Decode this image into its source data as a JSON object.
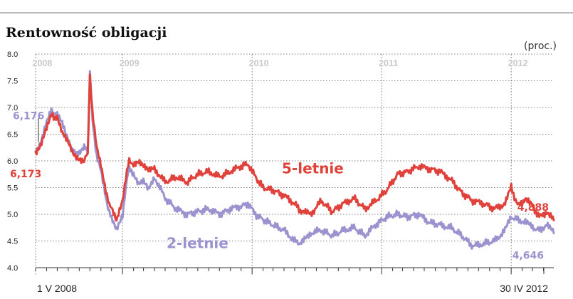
{
  "chart_data": {
    "type": "line",
    "title": "Rentowność obligacji",
    "unit": "(proc.)",
    "ylim": [
      4.0,
      8.0
    ],
    "yticks": [
      "4.0",
      "4.5",
      "5.0",
      "5.5",
      "6.0",
      "6.5",
      "7.0",
      "7.5",
      "8.0"
    ],
    "xlim": [
      "2008-05-01",
      "2012-04-30"
    ],
    "x_start_label": "1 V 2008",
    "x_end_label": "30 IV 2012",
    "year_labels": [
      {
        "text": "2008",
        "date": "2008-05-20"
      },
      {
        "text": "2009",
        "date": "2009-01-20"
      },
      {
        "text": "2010",
        "date": "2010-01-20"
      },
      {
        "text": "2011",
        "date": "2011-01-20"
      },
      {
        "text": "2012",
        "date": "2012-01-20"
      }
    ],
    "grid": true,
    "colors": {
      "five_year": "#e0413a",
      "two_year": "#9b93cf",
      "grid": "#555555"
    },
    "series": [
      {
        "name": "5-letnie",
        "color": "#e0413a",
        "start_value": "6,173",
        "end_value": "4,888",
        "points": [
          [
            "2008-05-01",
            6.17
          ],
          [
            "2008-05-15",
            6.3
          ],
          [
            "2008-06-01",
            6.6
          ],
          [
            "2008-06-15",
            6.85
          ],
          [
            "2008-07-01",
            6.8
          ],
          [
            "2008-07-15",
            6.5
          ],
          [
            "2008-08-01",
            6.35
          ],
          [
            "2008-08-15",
            6.15
          ],
          [
            "2008-09-01",
            6.05
          ],
          [
            "2008-09-15",
            6.0
          ],
          [
            "2008-09-25",
            6.15
          ],
          [
            "2008-10-01",
            7.6
          ],
          [
            "2008-10-08",
            6.9
          ],
          [
            "2008-10-20",
            6.3
          ],
          [
            "2008-11-01",
            5.9
          ],
          [
            "2008-11-15",
            5.4
          ],
          [
            "2008-12-01",
            5.1
          ],
          [
            "2008-12-15",
            4.85
          ],
          [
            "2009-01-01",
            5.25
          ],
          [
            "2009-01-10",
            5.7
          ],
          [
            "2009-01-20",
            6.0
          ],
          [
            "2009-02-01",
            5.95
          ],
          [
            "2009-02-15",
            6.0
          ],
          [
            "2009-03-01",
            5.9
          ],
          [
            "2009-03-15",
            5.8
          ],
          [
            "2009-04-01",
            5.85
          ],
          [
            "2009-05-01",
            5.6
          ],
          [
            "2009-06-01",
            5.7
          ],
          [
            "2009-07-01",
            5.6
          ],
          [
            "2009-08-01",
            5.75
          ],
          [
            "2009-09-01",
            5.8
          ],
          [
            "2009-10-01",
            5.7
          ],
          [
            "2009-11-01",
            5.8
          ],
          [
            "2009-12-01",
            5.9
          ],
          [
            "2009-12-20",
            5.95
          ],
          [
            "2010-01-10",
            5.7
          ],
          [
            "2010-02-01",
            5.5
          ],
          [
            "2010-03-01",
            5.45
          ],
          [
            "2010-04-01",
            5.35
          ],
          [
            "2010-05-01",
            5.2
          ],
          [
            "2010-05-20",
            5.05
          ],
          [
            "2010-06-15",
            5.0
          ],
          [
            "2010-07-15",
            5.25
          ],
          [
            "2010-08-15",
            5.05
          ],
          [
            "2010-09-15",
            5.2
          ],
          [
            "2010-10-15",
            5.3
          ],
          [
            "2010-11-15",
            5.1
          ],
          [
            "2010-12-15",
            5.25
          ],
          [
            "2011-01-15",
            5.45
          ],
          [
            "2011-02-15",
            5.75
          ],
          [
            "2011-03-15",
            5.8
          ],
          [
            "2011-04-15",
            5.9
          ],
          [
            "2011-05-15",
            5.85
          ],
          [
            "2011-06-15",
            5.8
          ],
          [
            "2011-07-15",
            5.65
          ],
          [
            "2011-08-15",
            5.4
          ],
          [
            "2011-09-15",
            5.25
          ],
          [
            "2011-10-15",
            5.2
          ],
          [
            "2011-11-15",
            5.1
          ],
          [
            "2011-12-15",
            5.2
          ],
          [
            "2012-01-01",
            5.5
          ],
          [
            "2012-01-20",
            5.15
          ],
          [
            "2012-02-10",
            5.3
          ],
          [
            "2012-03-01",
            5.15
          ],
          [
            "2012-03-20",
            4.95
          ],
          [
            "2012-04-10",
            5.05
          ],
          [
            "2012-04-30",
            4.888
          ]
        ]
      },
      {
        "name": "2-letnie",
        "color": "#9b93cf",
        "start_value": "6,176",
        "end_value": "4,646",
        "points": [
          [
            "2008-05-01",
            6.18
          ],
          [
            "2008-05-15",
            6.3
          ],
          [
            "2008-06-01",
            6.7
          ],
          [
            "2008-06-15",
            6.95
          ],
          [
            "2008-07-01",
            6.85
          ],
          [
            "2008-07-15",
            6.7
          ],
          [
            "2008-08-01",
            6.4
          ],
          [
            "2008-08-15",
            6.2
          ],
          [
            "2008-09-01",
            6.15
          ],
          [
            "2008-09-15",
            6.25
          ],
          [
            "2008-09-25",
            6.2
          ],
          [
            "2008-10-01",
            7.7
          ],
          [
            "2008-10-08",
            6.8
          ],
          [
            "2008-10-20",
            6.1
          ],
          [
            "2008-11-01",
            5.8
          ],
          [
            "2008-11-15",
            5.3
          ],
          [
            "2008-12-01",
            4.9
          ],
          [
            "2008-12-15",
            4.7
          ],
          [
            "2009-01-01",
            5.0
          ],
          [
            "2009-01-10",
            5.5
          ],
          [
            "2009-01-20",
            5.9
          ],
          [
            "2009-02-01",
            5.75
          ],
          [
            "2009-02-15",
            5.55
          ],
          [
            "2009-03-01",
            5.6
          ],
          [
            "2009-03-15",
            5.45
          ],
          [
            "2009-04-01",
            5.7
          ],
          [
            "2009-05-01",
            5.3
          ],
          [
            "2009-06-01",
            5.1
          ],
          [
            "2009-07-01",
            5.0
          ],
          [
            "2009-08-01",
            5.05
          ],
          [
            "2009-09-01",
            5.1
          ],
          [
            "2009-10-01",
            5.0
          ],
          [
            "2009-11-01",
            5.1
          ],
          [
            "2009-12-01",
            5.15
          ],
          [
            "2009-12-20",
            5.2
          ],
          [
            "2010-01-10",
            5.0
          ],
          [
            "2010-02-01",
            4.9
          ],
          [
            "2010-03-01",
            4.8
          ],
          [
            "2010-04-01",
            4.7
          ],
          [
            "2010-05-01",
            4.5
          ],
          [
            "2010-05-20",
            4.45
          ],
          [
            "2010-06-15",
            4.65
          ],
          [
            "2010-07-15",
            4.7
          ],
          [
            "2010-08-15",
            4.6
          ],
          [
            "2010-09-15",
            4.7
          ],
          [
            "2010-10-15",
            4.75
          ],
          [
            "2010-11-15",
            4.6
          ],
          [
            "2010-12-15",
            4.8
          ],
          [
            "2011-01-15",
            4.95
          ],
          [
            "2011-02-15",
            5.0
          ],
          [
            "2011-03-15",
            4.95
          ],
          [
            "2011-04-15",
            5.0
          ],
          [
            "2011-05-15",
            4.85
          ],
          [
            "2011-06-15",
            4.8
          ],
          [
            "2011-07-15",
            4.75
          ],
          [
            "2011-08-15",
            4.6
          ],
          [
            "2011-09-15",
            4.4
          ],
          [
            "2011-10-15",
            4.45
          ],
          [
            "2011-11-15",
            4.5
          ],
          [
            "2011-12-15",
            4.7
          ],
          [
            "2012-01-01",
            4.95
          ],
          [
            "2012-01-20",
            4.9
          ],
          [
            "2012-02-10",
            4.85
          ],
          [
            "2012-03-01",
            4.75
          ],
          [
            "2012-03-20",
            4.7
          ],
          [
            "2012-04-10",
            4.8
          ],
          [
            "2012-04-30",
            4.646
          ]
        ]
      }
    ]
  }
}
